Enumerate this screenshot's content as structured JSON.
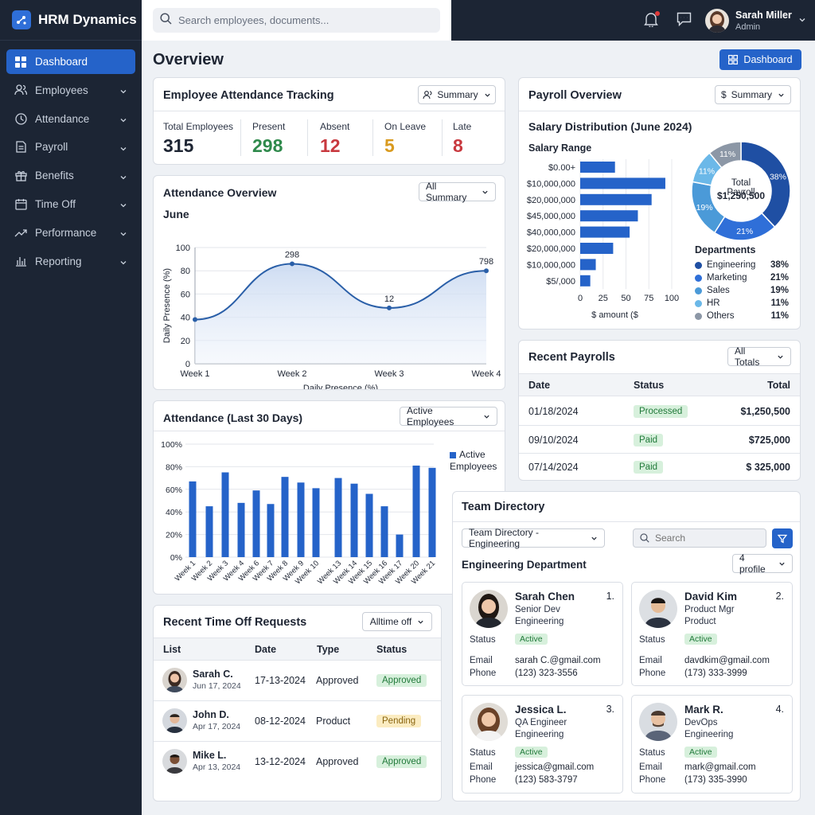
{
  "brand": {
    "name": "HRM Dynamics"
  },
  "sidebar": {
    "items": [
      {
        "label": "Dashboard",
        "icon": "grid-icon"
      },
      {
        "label": "Employees",
        "icon": "users-icon"
      },
      {
        "label": "Attendance",
        "icon": "clock-icon"
      },
      {
        "label": "Payroll",
        "icon": "document-icon"
      },
      {
        "label": "Benefits",
        "icon": "gift-icon"
      },
      {
        "label": "Time Off",
        "icon": "calendar-icon"
      },
      {
        "label": "Performance",
        "icon": "trend-icon"
      },
      {
        "label": "Reporting",
        "icon": "bar-chart-icon"
      }
    ]
  },
  "search": {
    "placeholder": "Search employees, documents..."
  },
  "user": {
    "name": "Sarah Miller",
    "role": "Admin"
  },
  "main": {
    "title": "Overview",
    "dashboard_button": "Dashboard"
  },
  "attendance_tracking": {
    "title": "Employee Attendance Tracking",
    "dropdown": "Summary",
    "stats": [
      {
        "label": "Total Employees",
        "value": "315",
        "color": "#1e2533"
      },
      {
        "label": "Present",
        "value": "298",
        "color": "#2f8a4c"
      },
      {
        "label": "Absent",
        "value": "12",
        "color": "#c8393f"
      },
      {
        "label": "On Leave",
        "value": "5",
        "color": "#d99a1e"
      },
      {
        "label": "Late",
        "value": "8",
        "color": "#c8393f"
      }
    ]
  },
  "attendance_overview": {
    "title": "Attendance Overview",
    "dropdown": "All Summary",
    "subtitle": "June",
    "ylabel": "Daily Presence (%)",
    "xlabel": "Daily Presence (%)"
  },
  "attendance_30": {
    "title": "Attendance (Last 30 Days)",
    "dropdown": "Active Employees",
    "legend_line1": "Active",
    "legend_line2": "Employees"
  },
  "payroll_overview": {
    "title": "Payroll Overview",
    "dropdown": "Summary",
    "subtitle": "Salary Distribution (June 2024)",
    "range_label": "Salary Range",
    "axis_label": "$ amount ($",
    "total_label": "Total Payroll",
    "total_value": "$1,250,500",
    "departments_title": "Departments"
  },
  "recent_payrolls": {
    "title": "Recent Payrolls",
    "dropdown": "All Totals",
    "columns": [
      "Date",
      "Status",
      "Total"
    ],
    "rows": [
      {
        "date": "01/18/2024",
        "status": "Processed",
        "total": "$1,250,500"
      },
      {
        "date": "09/10/2024",
        "status": "Paid",
        "total": "$725,000"
      },
      {
        "date": "07/14/2024",
        "status": "Paid",
        "total": "$ 325,000"
      }
    ]
  },
  "time_off": {
    "title": "Recent Time Off Requests",
    "dropdown": "Alltime off",
    "columns": [
      "List",
      "Date",
      "Type",
      "Status"
    ],
    "rows": [
      {
        "name": "Sarah C.",
        "sub": "Jun 17, 2024",
        "date": "17-13-2024",
        "type": "Approved",
        "status": "Approved",
        "status_kind": "green"
      },
      {
        "name": "John D.",
        "sub": "Apr 17, 2024",
        "date": "08-12-2024",
        "type": "Product",
        "status": "Pending",
        "status_kind": "yellow"
      },
      {
        "name": "Mike L.",
        "sub": "Apr 13, 2024",
        "date": "13-12-2024",
        "type": "Approved",
        "status": "Approved",
        "status_kind": "green"
      }
    ]
  },
  "team_directory": {
    "title": "Team Directory",
    "dropdown": "Team Directory - Engineering",
    "search_placeholder": "Search",
    "department": "Engineering Department",
    "profiles_dropdown": "4 profile",
    "labels": {
      "status": "Status",
      "email": "Email",
      "phone": "Phone"
    },
    "profiles": [
      {
        "num": "1.",
        "name": "Sarah Chen",
        "role": "Senior Dev",
        "dept": "Engineering",
        "status": "Active",
        "email": "sarah C.@gmail.com",
        "phone": "(123) 323-3556"
      },
      {
        "num": "2.",
        "name": "David Kim",
        "role": "Product Mgr",
        "dept": "Product",
        "status": "Active",
        "email": "davdkim@gmail.com",
        "phone": "(173) 333-3999"
      },
      {
        "num": "3.",
        "name": "Jessica L.",
        "role": "QA Engineer",
        "dept": "Engineering",
        "status": "Active",
        "email": "jessica@gmail.com",
        "phone": "(123) 583-3797"
      },
      {
        "num": "4.",
        "name": "Mark R.",
        "role": "DevOps",
        "dept": "Engineering",
        "status": "Active",
        "email": "mark@gmail.com",
        "phone": "(173) 335-3990"
      }
    ]
  },
  "colors": {
    "accent": "#2563c9",
    "sidebar": "#1c2534",
    "positive": "#2f8a4c",
    "negative": "#c8393f",
    "warning": "#d99a1e"
  },
  "chart_data": [
    {
      "type": "line",
      "title": "June",
      "ylabel": "Daily Presence (%)",
      "xlabel": "Daily Presence (%)",
      "categories": [
        "Week 1",
        "Week 2",
        "Week 3",
        "Week 4"
      ],
      "values": [
        38,
        86,
        48,
        80
      ],
      "point_labels": [
        "",
        "298",
        "12",
        "798"
      ],
      "yticks": [
        0,
        20,
        40,
        60,
        80,
        100
      ],
      "ylim": [
        0,
        100
      ],
      "grid": true
    },
    {
      "type": "bar",
      "title": "Attendance (Last 30 Days)",
      "series": [
        {
          "name": "Active Employees",
          "values": [
            67,
            45,
            75,
            48,
            59,
            47,
            71,
            66,
            61,
            70,
            65,
            56,
            45,
            20,
            81,
            79
          ]
        }
      ],
      "categories": [
        "Week 1",
        "Week 2",
        "Week 3",
        "Week 4",
        "Week 6",
        "Week 7",
        "Week 8",
        "Week 9",
        "Week 10",
        "Week 13",
        "Week 14",
        "Week 15",
        "Week 16",
        "Week 17",
        "Week 20",
        "Week 21"
      ],
      "yticks": [
        "0%",
        "20%",
        "40%",
        "60%",
        "80%",
        "100%"
      ],
      "ylim": [
        0,
        100
      ],
      "legend": "right"
    },
    {
      "type": "bar",
      "orientation": "horizontal",
      "title": "Salary Range",
      "xlabel": "$ amount ($",
      "categories": [
        "$0.00+",
        "$10,000,000",
        "$20,000,000",
        "$45,000,000",
        "$40,000,000",
        "$20,000,000",
        "$10,000,000",
        "$5/,000"
      ],
      "values": [
        38,
        93,
        78,
        63,
        54,
        36,
        17,
        11
      ],
      "xticks": [
        0,
        25,
        50,
        75,
        100
      ],
      "xlim": [
        0,
        100
      ]
    },
    {
      "type": "pie",
      "title": "Departments",
      "center_label": "Total Payroll",
      "center_value": "$1,250,500",
      "slices": [
        {
          "label": "Engineering",
          "value": 38,
          "pct": "38%",
          "color": "#1f4fa3"
        },
        {
          "label": "Marketing",
          "value": 21,
          "pct": "21%",
          "color": "#2f6fd8"
        },
        {
          "label": "Sales",
          "value": 19,
          "pct": "19%",
          "color": "#4b9ad8"
        },
        {
          "label": "HR",
          "value": 11,
          "pct": "11%",
          "color": "#6bb8e8"
        },
        {
          "label": "Others",
          "value": 11,
          "pct": "11%",
          "color": "#8c97a6"
        }
      ]
    }
  ]
}
